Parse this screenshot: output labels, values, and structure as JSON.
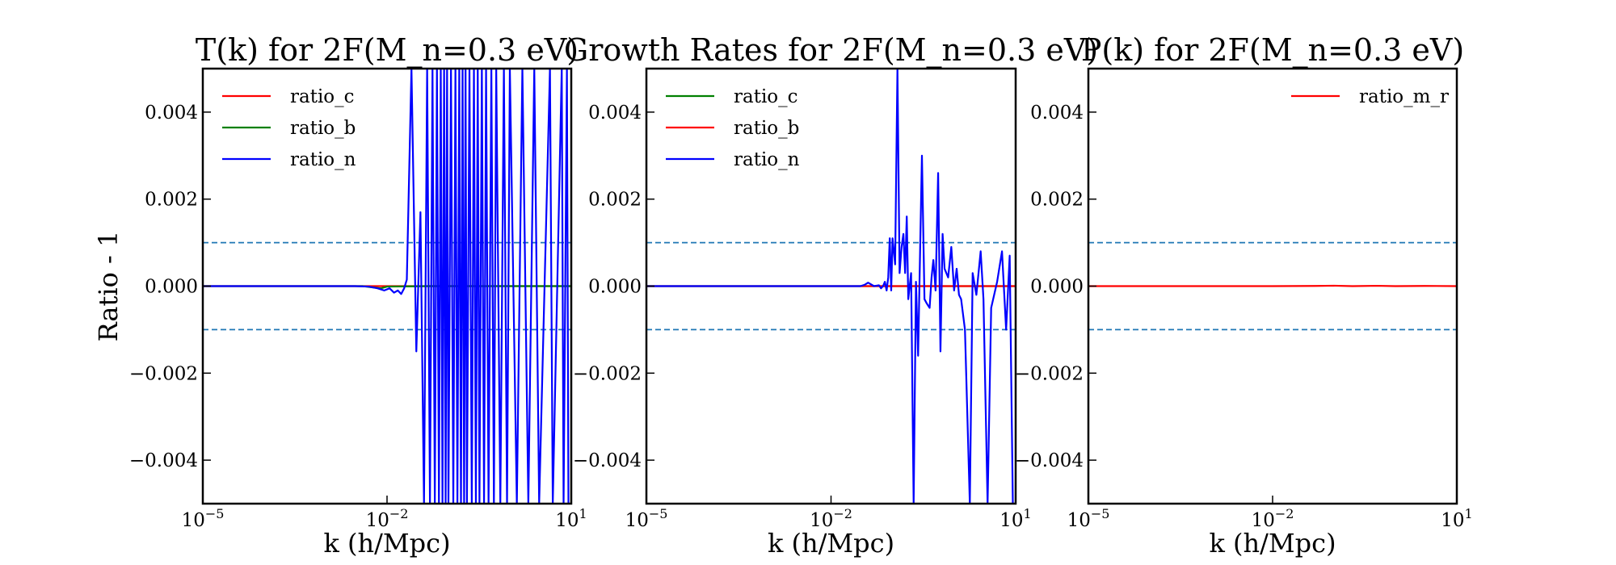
{
  "figure": {
    "ylabel": "Ratio - 1"
  },
  "chart_data": [
    {
      "type": "line",
      "title": "T(k) for 2F(M_n=0.3 eV)",
      "xlabel": "k (h/Mpc)",
      "ylabel": "Ratio - 1",
      "xscale": "log",
      "xlim": [
        1e-05,
        10
      ],
      "ylim": [
        -0.005,
        0.005
      ],
      "xticks": [
        {
          "value": 1e-05,
          "base": "10",
          "exp": "−5"
        },
        {
          "value": 0.01,
          "base": "10",
          "exp": "−2"
        },
        {
          "value": 10,
          "base": "10",
          "exp": "1"
        }
      ],
      "yticks": [
        {
          "value": 0.004,
          "label": "0.004"
        },
        {
          "value": 0.002,
          "label": "0.002"
        },
        {
          "value": 0.0,
          "label": "0.000"
        },
        {
          "value": -0.002,
          "label": "−0.002"
        },
        {
          "value": -0.004,
          "label": "−0.004"
        }
      ],
      "hlines": [
        0.001,
        -0.001
      ],
      "hline_color": "#1f77b4",
      "legend_position": "upper left",
      "series": [
        {
          "name": "ratio_c",
          "color": "#ff0000",
          "x": [
            1e-05,
            0.0001,
            0.001,
            0.005,
            0.01,
            0.05,
            0.5,
            10
          ],
          "y": [
            0.0,
            0.0,
            0.0,
            0.0,
            0.0,
            0.0,
            0.0,
            0.0
          ]
        },
        {
          "name": "ratio_b",
          "color": "#008000",
          "x": [
            1e-05,
            0.0001,
            0.001,
            0.004,
            0.006,
            0.008,
            0.01,
            0.05,
            0.5,
            10
          ],
          "y": [
            0.0,
            0.0,
            0.0,
            0.0,
            -3e-05,
            -5e-05,
            -1e-05,
            0.0,
            0.0,
            0.0
          ]
        },
        {
          "name": "ratio_n",
          "color": "#0000ff",
          "x": [
            1e-05,
            0.0001,
            0.001,
            0.003,
            0.005,
            0.007,
            0.009,
            0.011,
            0.013,
            0.015,
            0.017,
            0.019,
            0.021,
            0.025,
            0.03,
            0.035,
            0.04,
            0.045,
            0.05,
            0.055,
            0.06,
            0.065,
            0.07,
            0.075,
            0.08,
            0.085,
            0.09,
            0.095,
            0.1,
            0.11,
            0.12,
            0.13,
            0.14,
            0.15,
            0.16,
            0.17,
            0.18,
            0.19,
            0.2,
            0.22,
            0.24,
            0.26,
            0.28,
            0.3,
            0.32,
            0.35,
            0.38,
            0.41,
            0.45,
            0.5,
            0.55,
            0.6,
            0.7,
            0.8,
            0.9,
            1.0,
            1.3,
            1.6,
            2.0,
            2.5,
            3.0,
            4.5,
            5.0,
            7.0,
            7.5,
            8.5,
            9.0
          ],
          "y": [
            0.0,
            0.0,
            0.0,
            0.0,
            -1e-05,
            -5e-05,
            -0.0001,
            -5e-05,
            -0.00015,
            -0.0001,
            -0.00018,
            -5e-05,
            0.00015,
            0.005,
            -0.0015,
            0.0017,
            -0.005,
            0.005,
            -0.005,
            0.005,
            -0.005,
            0.005,
            -0.005,
            0.005,
            -0.005,
            0.005,
            -0.005,
            0.005,
            -0.005,
            0.005,
            -0.005,
            0.005,
            -0.005,
            0.005,
            -0.005,
            0.005,
            -0.005,
            0.005,
            -0.005,
            0.005,
            -0.005,
            0.005,
            -0.005,
            0.005,
            -0.005,
            0.005,
            -0.005,
            0.005,
            -0.005,
            0.005,
            -0.005,
            0.005,
            -0.005,
            0.005,
            -0.005,
            0.005,
            -0.005,
            0.005,
            -0.005,
            0.005,
            -0.005,
            0.005,
            -0.005,
            0.005,
            -0.005,
            0.005,
            -0.005
          ]
        }
      ]
    },
    {
      "type": "line",
      "title": "Growth Rates for 2F(M_n=0.3 eV)",
      "xlabel": "k (h/Mpc)",
      "xscale": "log",
      "xlim": [
        1e-05,
        10
      ],
      "ylim": [
        -0.005,
        0.005
      ],
      "xticks": [
        {
          "value": 1e-05,
          "base": "10",
          "exp": "−5"
        },
        {
          "value": 0.01,
          "base": "10",
          "exp": "−2"
        },
        {
          "value": 10,
          "base": "10",
          "exp": "1"
        }
      ],
      "yticks": [
        {
          "value": 0.004,
          "label": "0.004"
        },
        {
          "value": 0.002,
          "label": "0.002"
        },
        {
          "value": 0.0,
          "label": "0.000"
        },
        {
          "value": -0.002,
          "label": "−0.002"
        },
        {
          "value": -0.004,
          "label": "−0.004"
        }
      ],
      "hlines": [
        0.001,
        -0.001
      ],
      "hline_color": "#1f77b4",
      "legend_position": "upper left",
      "series": [
        {
          "name": "ratio_c",
          "color": "#008000",
          "x": [
            1e-05,
            0.001,
            0.1,
            10
          ],
          "y": [
            0.0,
            0.0,
            0.0,
            0.0
          ]
        },
        {
          "name": "ratio_b",
          "color": "#ff0000",
          "x": [
            1e-05,
            0.001,
            0.1,
            10
          ],
          "y": [
            0.0,
            0.0,
            0.0,
            0.0
          ]
        },
        {
          "name": "ratio_n",
          "color": "#0000ff",
          "x": [
            1e-05,
            0.0001,
            0.001,
            0.01,
            0.02,
            0.03,
            0.035,
            0.04,
            0.05,
            0.06,
            0.065,
            0.07,
            0.075,
            0.08,
            0.085,
            0.09,
            0.095,
            0.1,
            0.11,
            0.12,
            0.13,
            0.14,
            0.15,
            0.16,
            0.17,
            0.18,
            0.2,
            0.22,
            0.24,
            0.26,
            0.28,
            0.3,
            0.33,
            0.36,
            0.4,
            0.43,
            0.46,
            0.5,
            0.55,
            0.6,
            0.65,
            0.7,
            0.8,
            0.9,
            1.0,
            1.1,
            1.2,
            1.3,
            1.5,
            1.8,
            2.0,
            2.3,
            2.7,
            3.0,
            3.5,
            4.0,
            5.0,
            6.0,
            7.0,
            8.0,
            9.0
          ],
          "y": [
            0.0,
            0.0,
            0.0,
            0.0,
            0.0,
            0.0,
            3e-05,
            8e-05,
            0.0,
            2e-05,
            -5e-05,
            0.0,
            0.0001,
            -0.0001,
            0.0002,
            0.0011,
            -0.0001,
            0.0011,
            0.0005,
            0.005,
            0.0003,
            0.0009,
            0.0012,
            0.0003,
            0.0016,
            -0.0003,
            0.0003,
            -0.005,
            0.0001,
            -0.0016,
            0.0008,
            0.003,
            -0.0003,
            -0.0004,
            -0.0005,
            0.0002,
            0.0006,
            -0.0001,
            0.0026,
            -0.0015,
            0.0012,
            0.0004,
            0.0002,
            0.0009,
            -0.0001,
            0.0004,
            -0.0002,
            -0.0003,
            -0.001,
            -0.005,
            0.0003,
            -0.0002,
            0.0008,
            -0.0003,
            -0.005,
            -0.0005,
            0.0001,
            0.0008,
            -0.001,
            0.0007,
            -0.005
          ]
        }
      ]
    },
    {
      "type": "line",
      "title": "P(k) for 2F(M_n=0.3 eV)",
      "xlabel": "k (h/Mpc)",
      "xscale": "log",
      "xlim": [
        1e-05,
        10
      ],
      "ylim": [
        -0.005,
        0.005
      ],
      "xticks": [
        {
          "value": 1e-05,
          "base": "10",
          "exp": "−5"
        },
        {
          "value": 0.01,
          "base": "10",
          "exp": "−2"
        },
        {
          "value": 10,
          "base": "10",
          "exp": "1"
        }
      ],
      "yticks": [
        {
          "value": 0.004,
          "label": "0.004"
        },
        {
          "value": 0.002,
          "label": "0.002"
        },
        {
          "value": 0.0,
          "label": "0.000"
        },
        {
          "value": -0.002,
          "label": "−0.002"
        },
        {
          "value": -0.004,
          "label": "−0.004"
        }
      ],
      "hlines": [
        0.001,
        -0.001
      ],
      "hline_color": "#1f77b4",
      "legend_position": "upper right",
      "series": [
        {
          "name": "ratio_m_r",
          "color": "#ff0000",
          "x": [
            1e-05,
            0.0001,
            0.001,
            0.01,
            0.05,
            0.1,
            0.2,
            0.5,
            1.0,
            3.0,
            10
          ],
          "y": [
            0.0,
            0.0,
            0.0,
            0.0,
            5e-06,
            1e-05,
            0.0,
            8e-06,
            0.0,
            5e-06,
            0.0
          ]
        }
      ]
    }
  ]
}
